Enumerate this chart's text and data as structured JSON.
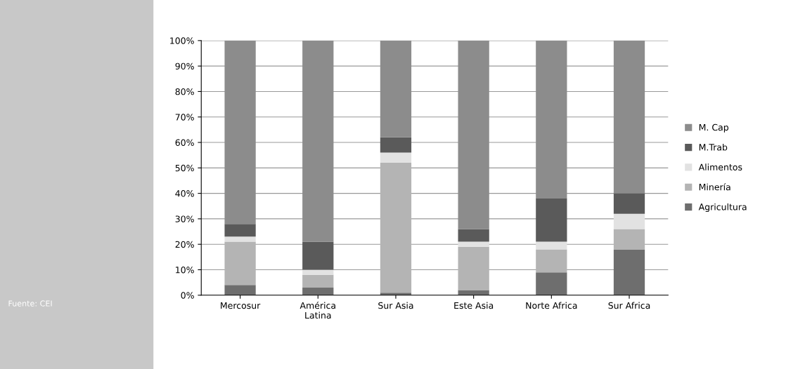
{
  "chart_data": {
    "type": "bar",
    "stacked": true,
    "categories": [
      "Mercosur",
      "América\nLatina",
      "Sur Asia",
      "Este Asia",
      "Norte Africa",
      "Sur Africa"
    ],
    "series": [
      {
        "name": "Agricultura",
        "color": "#6e6e6e",
        "values": [
          4,
          3,
          1,
          2,
          9,
          18
        ]
      },
      {
        "name": "Minería",
        "color": "#b4b4b4",
        "values": [
          17,
          5,
          51,
          17,
          9,
          8
        ]
      },
      {
        "name": "Alimentos",
        "color": "#e2e2e2",
        "values": [
          2,
          2,
          4,
          2,
          3,
          6
        ]
      },
      {
        "name": "M.Trab",
        "color": "#5a5a5a",
        "values": [
          5,
          11,
          6,
          5,
          17,
          8
        ]
      },
      {
        "name": "M. Cap",
        "color": "#8c8c8c",
        "values": [
          72,
          79,
          38,
          74,
          62,
          60
        ]
      }
    ],
    "ylim": [
      0,
      100
    ],
    "yticks": [
      {
        "value": 0,
        "label": "0%"
      },
      {
        "value": 10,
        "label": "10%"
      },
      {
        "value": 20,
        "label": "20%"
      },
      {
        "value": 30,
        "label": "30%"
      },
      {
        "value": 40,
        "label": "40%"
      },
      {
        "value": 50,
        "label": "50%"
      },
      {
        "value": 60,
        "label": "60%"
      },
      {
        "value": 70,
        "label": "70%"
      },
      {
        "value": 80,
        "label": "80%"
      },
      {
        "value": 90,
        "label": "90%"
      },
      {
        "value": 100,
        "label": "100%"
      }
    ],
    "grid": "y",
    "legend": "right",
    "annotations": [
      "Fuente: CEI"
    ]
  }
}
